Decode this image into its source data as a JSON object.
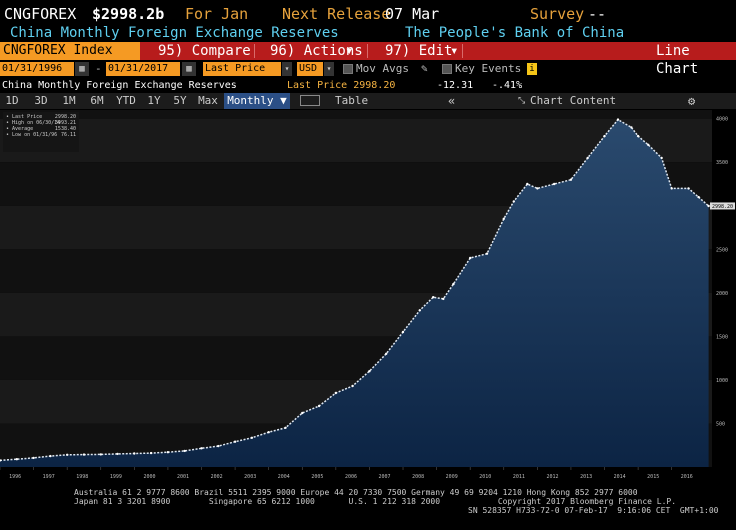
{
  "header": {
    "ticker": "CNGFOREX",
    "value": "$2998.2b",
    "period": "For Jan",
    "release_label": "Next Release",
    "release_date": "07 Mar",
    "survey_label": "Survey",
    "survey_value": "--",
    "description": "China Monthly Foreign Exchange Reserves",
    "source": "The People's Bank of China"
  },
  "toolbar": {
    "index_label": "CNGFOREX Index",
    "compare_label": "95) Compare",
    "actions_label": "96) Actions",
    "edit_label": "97) Edit",
    "chart_type_label": "Line Chart"
  },
  "controls": {
    "start_date": "01/31/1996",
    "end_date": "01/31/2017",
    "separator": "-",
    "field_value": "Last Price",
    "currency": "USD",
    "mov_avgs_label": "Mov Avgs",
    "key_events_label": "Key Events"
  },
  "info": {
    "title": "China Monthly Foreign Exchange Reserves",
    "last_price_text": "Last Price 2998.20",
    "change": "-12.31",
    "pct_change": "-.41%"
  },
  "tabs": {
    "periods": [
      "1D",
      "3D",
      "1M",
      "6M",
      "YTD",
      "1Y",
      "5Y",
      "Max"
    ],
    "frequency": "Monthly",
    "table_label": "Table",
    "nav_label": "«",
    "chart_content_label": "Chart Content"
  },
  "legend": {
    "items": [
      {
        "label": "Last Price",
        "value": "2998.20"
      },
      {
        "label": "High on 06/30/14",
        "value": "3993.21"
      },
      {
        "label": "Average",
        "value": "1538.40"
      },
      {
        "label": "Low on 01/31/96",
        "value": "76.11"
      }
    ]
  },
  "chart_data": {
    "type": "area",
    "title": "",
    "xlabel": "",
    "ylabel": "",
    "x_ticks": [
      "1996",
      "1997",
      "1998",
      "1999",
      "2000",
      "2001",
      "2002",
      "2003",
      "2004",
      "2005",
      "2006",
      "2007",
      "2008",
      "2009",
      "2010",
      "2011",
      "2012",
      "2013",
      "2014",
      "2015",
      "2016"
    ],
    "y_ticks": [
      500,
      1000,
      1500,
      2000,
      2500,
      3000,
      3500,
      4000
    ],
    "ylim": [
      0,
      4100
    ],
    "xlim": [
      1996.0,
      2017.2
    ],
    "last_value_label": "2998.20",
    "series": [
      {
        "x": [
          1996.0,
          1996.5,
          1997.0,
          1997.5,
          1998.0,
          1998.5,
          1999.0,
          1999.5,
          2000.0,
          2000.5,
          2001.0,
          2001.5,
          2002.0,
          2002.5,
          2003.0,
          2003.5,
          2004.0,
          2004.5,
          2005.0,
          2005.5,
          2006.0,
          2006.5,
          2007.0,
          2007.5,
          2008.0,
          2008.5,
          2008.9,
          2009.2,
          2009.5,
          2010.0,
          2010.5,
          2011.0,
          2011.3,
          2011.7,
          2012.0,
          2012.5,
          2013.0,
          2013.5,
          2014.0,
          2014.4,
          2014.8,
          2015.0,
          2015.3,
          2015.7,
          2016.0,
          2016.5,
          2016.8,
          2017.1
        ],
        "y": [
          76,
          90,
          105,
          125,
          140,
          142,
          145,
          150,
          155,
          160,
          170,
          185,
          215,
          240,
          290,
          335,
          400,
          450,
          620,
          700,
          850,
          930,
          1100,
          1300,
          1550,
          1800,
          1950,
          1930,
          2100,
          2400,
          2450,
          2850,
          3050,
          3250,
          3200,
          3250,
          3300,
          3550,
          3800,
          3990,
          3900,
          3800,
          3700,
          3550,
          3200,
          3200,
          3100,
          2998
        ]
      }
    ]
  },
  "footer": {
    "line1": "Australia 61 2 9777 8600 Brazil 5511 2395 9000 Europe 44 20 7330 7500 Germany 49 69 9204 1210 Hong Kong 852 2977 6000",
    "line2": "Japan 81 3 3201 8900        Singapore 65 6212 1000       U.S. 1 212 318 2000            Copyright 2017 Bloomberg Finance L.P.",
    "line3": "SN 528357 H733-72-0 07-Feb-17  9:16:06 CET  GMT+1:00"
  },
  "colors": {
    "accent_orange": "#f59a23",
    "toolbar_red": "#b71c1c",
    "cyan_text": "#5fd0f0",
    "area_fill_top": "#2a4a6e",
    "area_fill_bottom": "#0c2444"
  }
}
